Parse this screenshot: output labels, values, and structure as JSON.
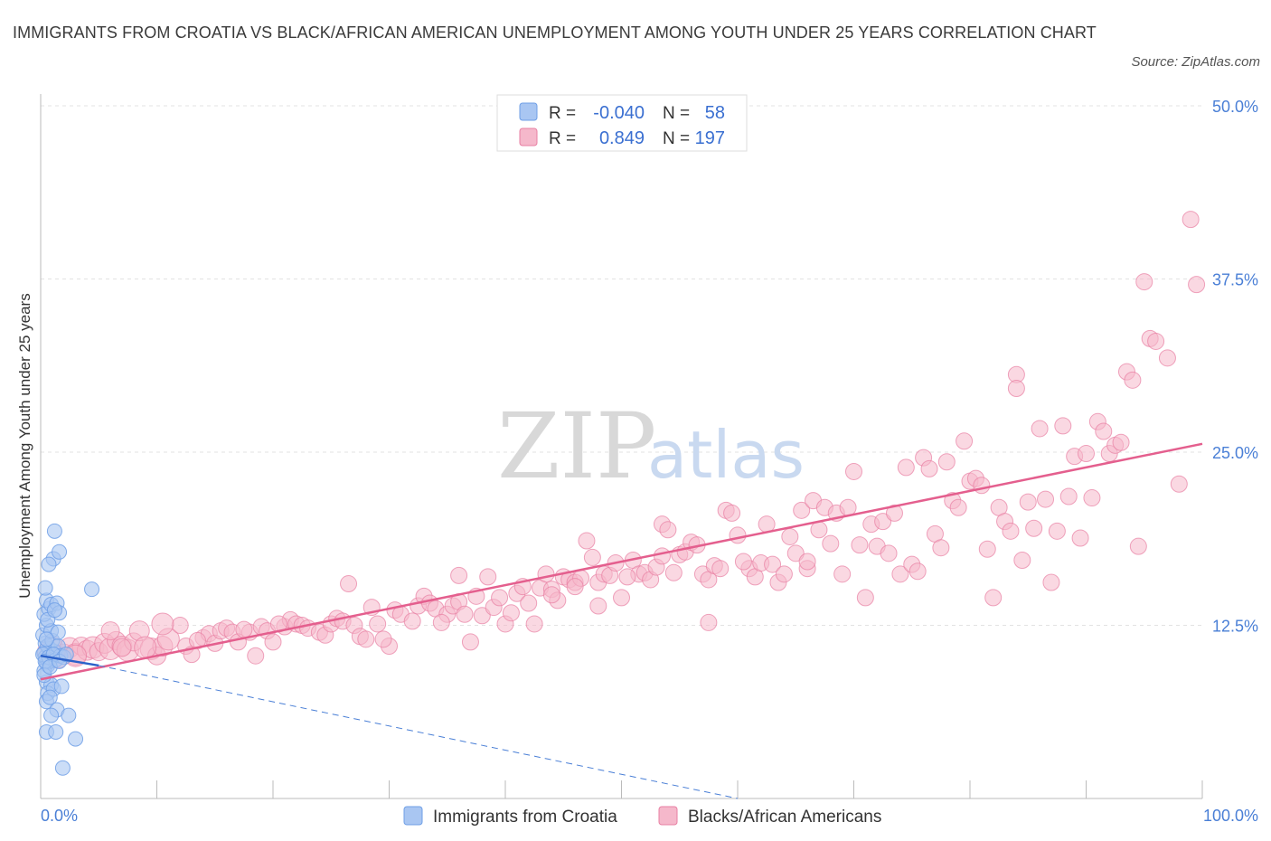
{
  "title": "IMMIGRANTS FROM CROATIA VS BLACK/AFRICAN AMERICAN UNEMPLOYMENT AMONG YOUTH UNDER 25 YEARS CORRELATION CHART",
  "source": "Source: ZipAtlas.com",
  "watermark": {
    "zip": "ZIP",
    "atlas": "atlas"
  },
  "legend": {
    "rows": [
      {
        "r_label": "R =",
        "r_value": "-0.040",
        "n_label": "N =",
        "n_value": "58",
        "color": "#a9c6f2"
      },
      {
        "r_label": "R =",
        "r_value": "0.849",
        "n_label": "N =",
        "n_value": "197",
        "color": "#f5b8cb"
      }
    ]
  },
  "bottom_legend": [
    {
      "label": "Immigrants from Croatia",
      "color": "#a9c6f2"
    },
    {
      "label": "Blacks/African Americans",
      "color": "#f5b8cb"
    }
  ],
  "chart_data": {
    "type": "scatter",
    "title": "IMMIGRANTS FROM CROATIA VS BLACK/AFRICAN AMERICAN UNEMPLOYMENT AMONG YOUTH UNDER 25 YEARS CORRELATION CHART",
    "xlabel": "",
    "ylabel": "Unemployment Among Youth under 25 years",
    "xlim": [
      0,
      100
    ],
    "ylim": [
      0,
      50
    ],
    "x_tick_labels": [
      "0.0%",
      "100.0%"
    ],
    "y_ticks": [
      12.5,
      25.0,
      37.5,
      50.0
    ],
    "y_tick_labels": [
      "12.5%",
      "25.0%",
      "37.5%",
      "50.0%"
    ],
    "grid": true,
    "series": [
      {
        "name": "Immigrants from Croatia",
        "color": "#6f9fe6",
        "fill": "#a9c6f2",
        "points": [
          [
            0.3,
            10.5
          ],
          [
            0.5,
            9.8
          ],
          [
            0.4,
            11.2
          ],
          [
            0.6,
            10.0
          ],
          [
            0.8,
            10.8
          ],
          [
            0.2,
            11.8
          ],
          [
            0.5,
            12.5
          ],
          [
            0.3,
            13.3
          ],
          [
            0.7,
            13.7
          ],
          [
            0.5,
            14.3
          ],
          [
            0.9,
            14.0
          ],
          [
            1.4,
            14.1
          ],
          [
            1.6,
            13.4
          ],
          [
            0.4,
            15.2
          ],
          [
            1.1,
            17.3
          ],
          [
            1.6,
            17.8
          ],
          [
            0.7,
            16.9
          ],
          [
            1.2,
            19.3
          ],
          [
            4.4,
            15.1
          ],
          [
            0.4,
            10.2
          ],
          [
            0.6,
            9.6
          ],
          [
            0.8,
            9.9
          ],
          [
            1.0,
            10.3
          ],
          [
            1.2,
            10.6
          ],
          [
            0.5,
            8.4
          ],
          [
            0.9,
            8.2
          ],
          [
            0.6,
            7.6
          ],
          [
            1.1,
            7.9
          ],
          [
            1.8,
            8.1
          ],
          [
            0.5,
            7.0
          ],
          [
            0.8,
            7.3
          ],
          [
            1.4,
            6.4
          ],
          [
            0.9,
            6.0
          ],
          [
            2.4,
            6.0
          ],
          [
            0.5,
            4.8
          ],
          [
            1.3,
            4.8
          ],
          [
            3.0,
            4.3
          ],
          [
            1.9,
            2.2
          ],
          [
            0.3,
            9.2
          ],
          [
            0.6,
            11.0
          ],
          [
            1.0,
            11.4
          ],
          [
            1.5,
            11.0
          ],
          [
            0.2,
            10.4
          ],
          [
            0.7,
            10.2
          ],
          [
            1.3,
            10.0
          ],
          [
            1.7,
            10.3
          ],
          [
            0.4,
            9.9
          ],
          [
            1.1,
            10.4
          ],
          [
            0.9,
            12.1
          ],
          [
            1.5,
            12.0
          ],
          [
            2.0,
            10.2
          ],
          [
            0.5,
            11.5
          ],
          [
            0.3,
            8.9
          ],
          [
            0.8,
            9.5
          ],
          [
            1.6,
            9.9
          ],
          [
            2.2,
            10.4
          ],
          [
            0.6,
            12.9
          ],
          [
            1.2,
            13.6
          ]
        ],
        "trend_solid": [
          [
            0,
            10.3
          ],
          [
            5,
            9.6
          ]
        ],
        "trend_dashed": [
          [
            5,
            9.6
          ],
          [
            60,
            0.0
          ]
        ]
      },
      {
        "name": "Blacks/African Americans",
        "color": "#e87fa3",
        "fill": "#f5b8cb",
        "trend": [
          [
            0,
            8.6
          ],
          [
            100,
            25.6
          ]
        ],
        "points": [
          [
            0.5,
            10.6
          ],
          [
            1.0,
            11.0
          ],
          [
            1.5,
            10.2
          ],
          [
            2.0,
            10.5
          ],
          [
            2.5,
            10.9
          ],
          [
            3.0,
            10.4
          ],
          [
            3.5,
            11.0
          ],
          [
            4.0,
            10.7
          ],
          [
            4.5,
            10.9
          ],
          [
            5.0,
            10.6
          ],
          [
            5.5,
            11.2
          ],
          [
            6.0,
            10.8
          ],
          [
            6.5,
            11.4
          ],
          [
            7.0,
            11.0
          ],
          [
            7.5,
            10.7
          ],
          [
            8.0,
            11.3
          ],
          [
            8.5,
            12.1
          ],
          [
            9.5,
            10.8
          ],
          [
            10.0,
            10.3
          ],
          [
            10.5,
            11.0
          ],
          [
            11.0,
            11.5
          ],
          [
            12.0,
            12.5
          ],
          [
            12.5,
            11.0
          ],
          [
            13.0,
            10.4
          ],
          [
            14.0,
            11.6
          ],
          [
            14.5,
            11.9
          ],
          [
            15.0,
            11.2
          ],
          [
            15.5,
            12.1
          ],
          [
            16.0,
            12.3
          ],
          [
            16.5,
            12.0
          ],
          [
            17.0,
            11.3
          ],
          [
            18.0,
            12.0
          ],
          [
            18.5,
            10.3
          ],
          [
            19.0,
            12.4
          ],
          [
            19.5,
            12.1
          ],
          [
            20.0,
            11.3
          ],
          [
            21.0,
            12.4
          ],
          [
            21.5,
            12.9
          ],
          [
            22.0,
            12.6
          ],
          [
            22.5,
            12.5
          ],
          [
            23.0,
            12.3
          ],
          [
            24.0,
            12.0
          ],
          [
            24.5,
            11.8
          ],
          [
            25.0,
            12.6
          ],
          [
            25.5,
            13.0
          ],
          [
            26.0,
            12.8
          ],
          [
            27.0,
            12.5
          ],
          [
            27.5,
            11.7
          ],
          [
            28.0,
            11.5
          ],
          [
            28.5,
            13.8
          ],
          [
            29.0,
            12.6
          ],
          [
            30.0,
            11.0
          ],
          [
            30.5,
            13.6
          ],
          [
            31.0,
            13.3
          ],
          [
            32.0,
            12.8
          ],
          [
            32.5,
            13.9
          ],
          [
            33.0,
            14.6
          ],
          [
            33.5,
            14.1
          ],
          [
            34.0,
            13.7
          ],
          [
            35.0,
            13.3
          ],
          [
            35.5,
            13.9
          ],
          [
            36.0,
            14.2
          ],
          [
            36.5,
            13.3
          ],
          [
            37.0,
            11.3
          ],
          [
            37.5,
            14.6
          ],
          [
            38.0,
            13.2
          ],
          [
            39.0,
            13.8
          ],
          [
            39.5,
            14.5
          ],
          [
            40.0,
            12.6
          ],
          [
            40.5,
            13.4
          ],
          [
            41.0,
            14.8
          ],
          [
            41.5,
            15.3
          ],
          [
            42.0,
            14.1
          ],
          [
            43.0,
            15.2
          ],
          [
            43.5,
            16.2
          ],
          [
            44.0,
            15.1
          ],
          [
            44.5,
            14.3
          ],
          [
            45.0,
            16.0
          ],
          [
            45.5,
            15.8
          ],
          [
            46.0,
            15.6
          ],
          [
            46.5,
            15.9
          ],
          [
            47.0,
            18.6
          ],
          [
            47.5,
            17.4
          ],
          [
            48.0,
            15.6
          ],
          [
            48.5,
            16.2
          ],
          [
            49.0,
            16.1
          ],
          [
            49.5,
            17.0
          ],
          [
            50.0,
            14.5
          ],
          [
            51.0,
            17.2
          ],
          [
            51.5,
            16.2
          ],
          [
            52.0,
            16.3
          ],
          [
            52.5,
            15.8
          ],
          [
            53.0,
            16.7
          ],
          [
            53.5,
            19.8
          ],
          [
            54.0,
            19.4
          ],
          [
            54.5,
            16.3
          ],
          [
            55.0,
            17.6
          ],
          [
            55.5,
            17.8
          ],
          [
            56.0,
            18.5
          ],
          [
            57.0,
            16.2
          ],
          [
            57.5,
            15.8
          ],
          [
            58.0,
            16.8
          ],
          [
            58.5,
            16.6
          ],
          [
            59.0,
            20.8
          ],
          [
            59.5,
            20.6
          ],
          [
            60.0,
            19.0
          ],
          [
            61.0,
            16.6
          ],
          [
            61.5,
            16.0
          ],
          [
            62.0,
            17.0
          ],
          [
            62.5,
            19.8
          ],
          [
            63.0,
            16.9
          ],
          [
            63.5,
            15.6
          ],
          [
            64.0,
            16.2
          ],
          [
            65.0,
            17.7
          ],
          [
            65.5,
            20.8
          ],
          [
            66.0,
            16.6
          ],
          [
            66.5,
            21.5
          ],
          [
            67.0,
            19.4
          ],
          [
            67.5,
            21.0
          ],
          [
            68.0,
            18.4
          ],
          [
            68.5,
            20.6
          ],
          [
            69.0,
            16.2
          ],
          [
            69.5,
            21.0
          ],
          [
            70.0,
            23.6
          ],
          [
            70.5,
            18.3
          ],
          [
            71.0,
            14.5
          ],
          [
            71.5,
            19.8
          ],
          [
            72.0,
            18.2
          ],
          [
            72.5,
            20.0
          ],
          [
            73.0,
            17.7
          ],
          [
            73.5,
            20.6
          ],
          [
            74.0,
            16.2
          ],
          [
            74.5,
            23.9
          ],
          [
            75.0,
            16.9
          ],
          [
            75.5,
            16.4
          ],
          [
            76.0,
            24.6
          ],
          [
            76.5,
            23.8
          ],
          [
            77.0,
            19.1
          ],
          [
            77.5,
            18.1
          ],
          [
            78.0,
            24.3
          ],
          [
            78.5,
            21.5
          ],
          [
            79.0,
            21.0
          ],
          [
            79.5,
            25.8
          ],
          [
            80.0,
            22.9
          ],
          [
            80.5,
            23.1
          ],
          [
            81.0,
            22.6
          ],
          [
            81.5,
            18.0
          ],
          [
            82.0,
            14.5
          ],
          [
            82.5,
            21.0
          ],
          [
            83.0,
            20.0
          ],
          [
            83.5,
            19.3
          ],
          [
            84.0,
            30.6
          ],
          [
            84.5,
            17.2
          ],
          [
            85.0,
            21.4
          ],
          [
            85.5,
            19.5
          ],
          [
            86.0,
            26.7
          ],
          [
            86.5,
            21.6
          ],
          [
            87.0,
            15.6
          ],
          [
            87.5,
            19.3
          ],
          [
            88.0,
            26.9
          ],
          [
            88.5,
            21.8
          ],
          [
            89.0,
            24.7
          ],
          [
            89.5,
            18.8
          ],
          [
            90.0,
            24.9
          ],
          [
            90.5,
            21.7
          ],
          [
            91.0,
            27.2
          ],
          [
            91.5,
            26.5
          ],
          [
            92.0,
            24.9
          ],
          [
            92.5,
            25.5
          ],
          [
            93.0,
            25.7
          ],
          [
            93.5,
            30.8
          ],
          [
            94.0,
            30.2
          ],
          [
            94.5,
            18.2
          ],
          [
            95.0,
            37.3
          ],
          [
            95.5,
            33.2
          ],
          [
            96.0,
            33.0
          ],
          [
            97.0,
            31.8
          ],
          [
            98.0,
            22.7
          ],
          [
            99.0,
            41.8
          ],
          [
            99.5,
            37.1
          ],
          [
            84.0,
            29.6
          ],
          [
            20.5,
            12.6
          ],
          [
            10.5,
            12.6
          ],
          [
            6.0,
            12.1
          ],
          [
            38.5,
            16.0
          ],
          [
            44.0,
            14.7
          ],
          [
            56.5,
            18.3
          ],
          [
            60.5,
            17.1
          ],
          [
            9.0,
            10.9
          ],
          [
            13.5,
            11.4
          ],
          [
            26.5,
            15.5
          ],
          [
            34.5,
            12.7
          ],
          [
            42.5,
            12.6
          ],
          [
            48.0,
            13.9
          ],
          [
            53.5,
            17.5
          ],
          [
            57.5,
            12.7
          ],
          [
            66.0,
            17.1
          ],
          [
            3.0,
            10.3
          ],
          [
            7.0,
            10.9
          ],
          [
            17.5,
            12.2
          ],
          [
            29.5,
            11.5
          ],
          [
            36.0,
            16.1
          ],
          [
            46.0,
            15.3
          ],
          [
            50.5,
            16.0
          ],
          [
            64.5,
            18.9
          ]
        ]
      }
    ]
  }
}
